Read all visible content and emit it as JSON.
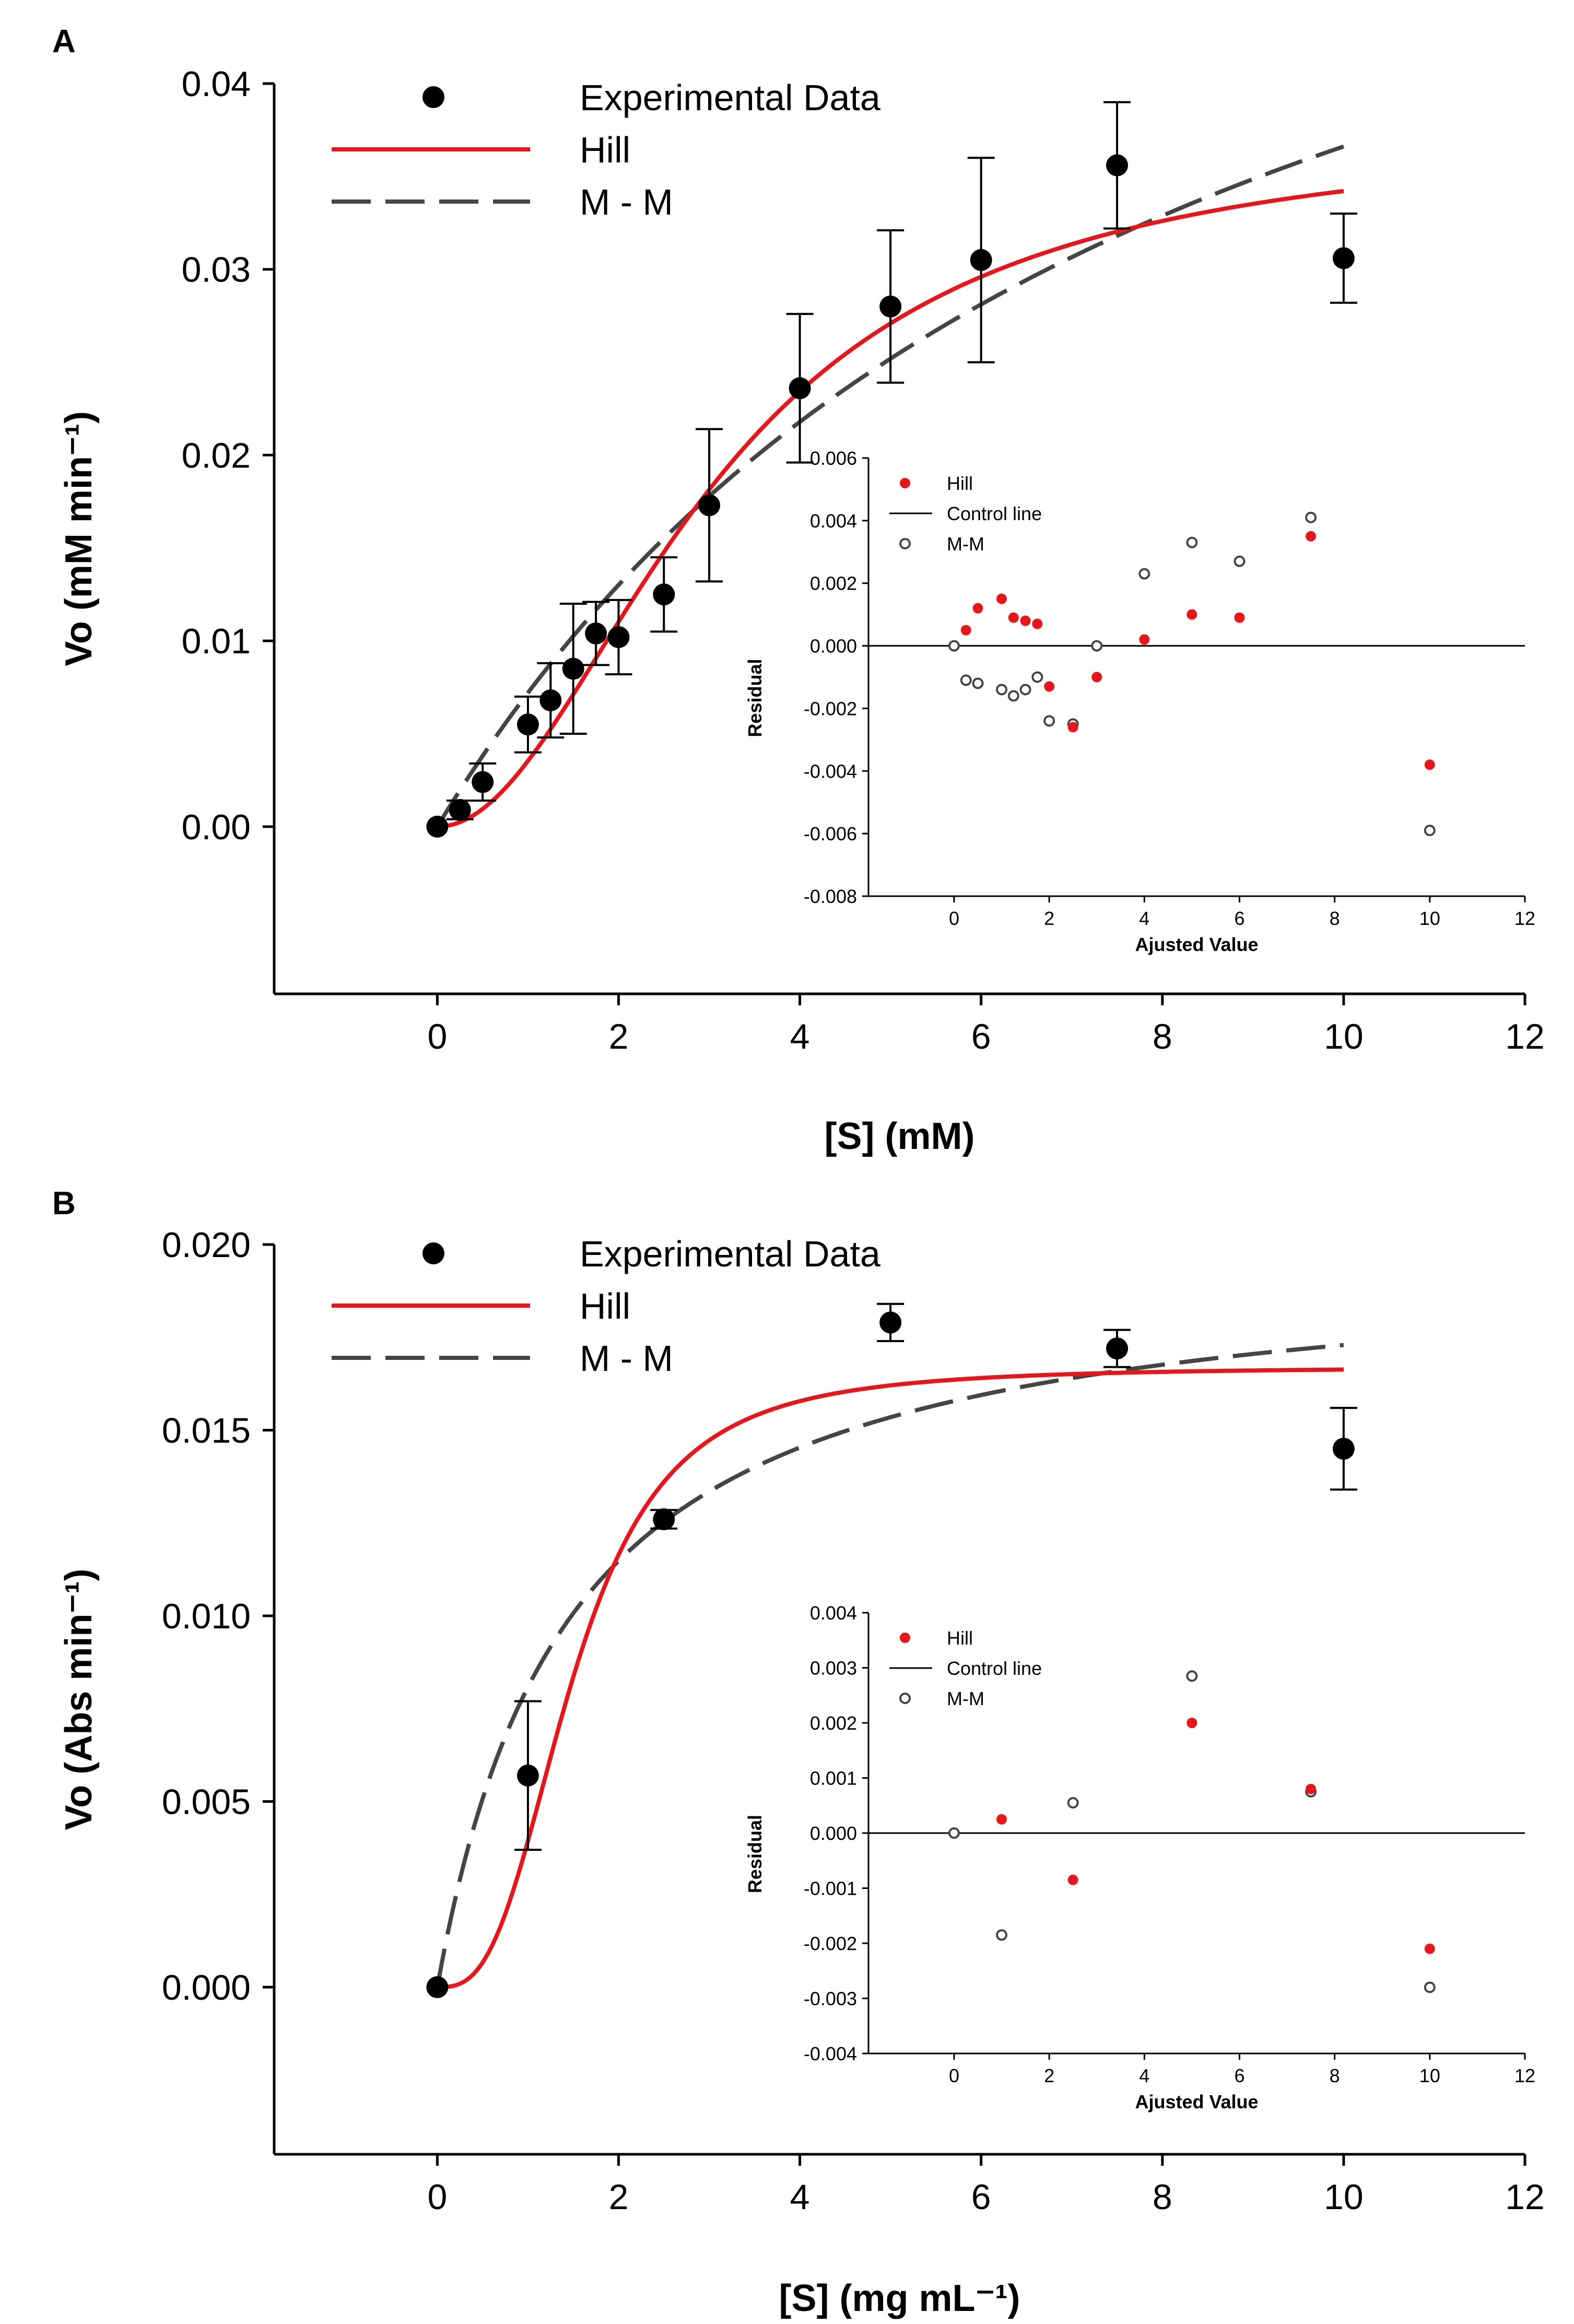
{
  "chart_data": [
    {
      "type": "scatter",
      "panel_label": "A",
      "title": "",
      "xlabel": "[S] (mM)",
      "ylabel": "Vo (mM min⁻¹)",
      "xlim": [
        -1.8,
        12
      ],
      "ylim": [
        -0.009,
        0.04
      ],
      "xticks": [
        0,
        2,
        4,
        6,
        8,
        10,
        12
      ],
      "xtick_labels": [
        "0",
        "2",
        "4",
        "6",
        "8",
        "10",
        "12"
      ],
      "yticks": [
        0,
        0.01,
        0.02,
        0.03,
        0.04
      ],
      "ytick_labels": [
        "0.00",
        "0.01",
        "0.02",
        "0.03",
        "0.04"
      ],
      "legend": [
        "Experimental Data",
        "Hill",
        "M - M"
      ],
      "experimental": {
        "x": [
          0,
          0.25,
          0.5,
          1.0,
          1.25,
          1.5,
          1.75,
          2.0,
          2.5,
          3.0,
          4.0,
          5.0,
          6.0,
          7.5,
          10.0
        ],
        "y": [
          0.0,
          0.0009,
          0.0024,
          0.0055,
          0.0068,
          0.0085,
          0.0104,
          0.0102,
          0.0125,
          0.0173,
          0.0236,
          0.028,
          0.0305,
          0.0356,
          0.0306
        ],
        "err": [
          0,
          0.0005,
          0.001,
          0.0015,
          0.002,
          0.0035,
          0.0017,
          0.002,
          0.002,
          0.0041,
          0.004,
          0.0041,
          0.0055,
          0.0034,
          0.0024
        ]
      },
      "hill": {
        "vmax": 0.0375,
        "k": 3.1,
        "n": 2.0,
        "x_range": [
          0,
          10
        ]
      },
      "mm": {
        "vmax": 0.067,
        "km": 8.3,
        "x_range": [
          0,
          10
        ]
      },
      "inset": {
        "xlabel": "Ajusted Value",
        "ylabel": "Residual",
        "xlim": [
          -1.8,
          12
        ],
        "ylim": [
          -0.008,
          0.006
        ],
        "xticks": [
          0,
          2,
          4,
          6,
          8,
          10,
          12
        ],
        "xtick_labels": [
          "0",
          "2",
          "4",
          "6",
          "8",
          "10",
          "12"
        ],
        "yticks": [
          -0.008,
          -0.006,
          -0.004,
          -0.002,
          0,
          0.002,
          0.004,
          0.006
        ],
        "ytick_labels": [
          "-0.008",
          "-0.006",
          "-0.004",
          "-0.002",
          "0.000",
          "0.002",
          "0.004",
          "0.006"
        ],
        "legend": [
          "Hill",
          "Control line",
          "M-M"
        ],
        "hill_residuals": {
          "x": [
            0.25,
            0.5,
            1.0,
            1.25,
            1.5,
            1.75,
            2.0,
            2.5,
            3.0,
            4.0,
            5.0,
            6.0,
            7.5,
            10.0
          ],
          "y": [
            0.0005,
            0.0012,
            0.0015,
            0.0009,
            0.0008,
            0.0007,
            -0.0013,
            -0.0026,
            -0.001,
            0.0002,
            0.001,
            0.0009,
            0.0035,
            -0.0038
          ]
        },
        "mm_residuals": {
          "x": [
            0,
            0.25,
            0.5,
            1.0,
            1.25,
            1.5,
            1.75,
            2.0,
            2.5,
            3.0,
            4.0,
            5.0,
            6.0,
            7.5,
            10.0
          ],
          "y": [
            0.0,
            -0.0011,
            -0.0012,
            -0.0014,
            -0.0016,
            -0.0014,
            -0.001,
            -0.0024,
            -0.0025,
            0.0,
            0.0023,
            0.0033,
            0.0027,
            0.0041,
            -0.0059
          ]
        }
      }
    },
    {
      "type": "scatter",
      "panel_label": "B",
      "title": "",
      "xlabel": "[S] (mg mL⁻¹)",
      "ylabel": "Vo (Abs min⁻¹)",
      "xlim": [
        -1.8,
        12
      ],
      "ylim": [
        -0.0045,
        0.02
      ],
      "xticks": [
        0,
        2,
        4,
        6,
        8,
        10,
        12
      ],
      "xtick_labels": [
        "0",
        "2",
        "4",
        "6",
        "8",
        "10",
        "12"
      ],
      "yticks": [
        0,
        0.005,
        0.01,
        0.015,
        0.02
      ],
      "ytick_labels": [
        "0.000",
        "0.005",
        "0.010",
        "0.015",
        "0.020"
      ],
      "legend": [
        "Experimental Data",
        "Hill",
        "M - M"
      ],
      "experimental": {
        "x": [
          0,
          1.0,
          2.5,
          5.0,
          7.5,
          10.0
        ],
        "y": [
          0.0,
          0.0057,
          0.0126,
          0.0179,
          0.0172,
          0.0145
        ],
        "err": [
          0,
          0.002,
          0.00025,
          0.0005,
          0.0005,
          0.0011
        ]
      },
      "hill": {
        "vmax": 0.0167,
        "k": 1.5,
        "n": 2.9,
        "x_range": [
          0,
          10
        ]
      },
      "mm": {
        "vmax": 0.0198,
        "km": 1.45,
        "x_range": [
          0,
          10
        ]
      },
      "inset": {
        "xlabel": "Ajusted Value",
        "ylabel": "Residual",
        "xlim": [
          -1.8,
          12
        ],
        "ylim": [
          -0.004,
          0.004
        ],
        "xticks": [
          0,
          2,
          4,
          6,
          8,
          10,
          12
        ],
        "xtick_labels": [
          "0",
          "2",
          "4",
          "6",
          "8",
          "10",
          "12"
        ],
        "yticks": [
          -0.004,
          -0.003,
          -0.002,
          -0.001,
          0,
          0.001,
          0.002,
          0.003,
          0.004
        ],
        "ytick_labels": [
          "-0.004",
          "-0.003",
          "-0.002",
          "-0.001",
          "0.000",
          "0.001",
          "0.002",
          "0.003",
          "0.004"
        ],
        "legend": [
          "Hill",
          "Control line",
          "M-M"
        ],
        "hill_residuals": {
          "x": [
            1.0,
            2.5,
            5.0,
            7.5,
            10.0
          ],
          "y": [
            0.00025,
            -0.00085,
            0.002,
            0.0008,
            -0.0021
          ]
        },
        "mm_residuals": {
          "x": [
            0,
            1.0,
            2.5,
            5.0,
            7.5,
            10.0
          ],
          "y": [
            0.0,
            -0.00185,
            0.00055,
            0.00285,
            0.00075,
            -0.0028
          ]
        }
      }
    }
  ]
}
